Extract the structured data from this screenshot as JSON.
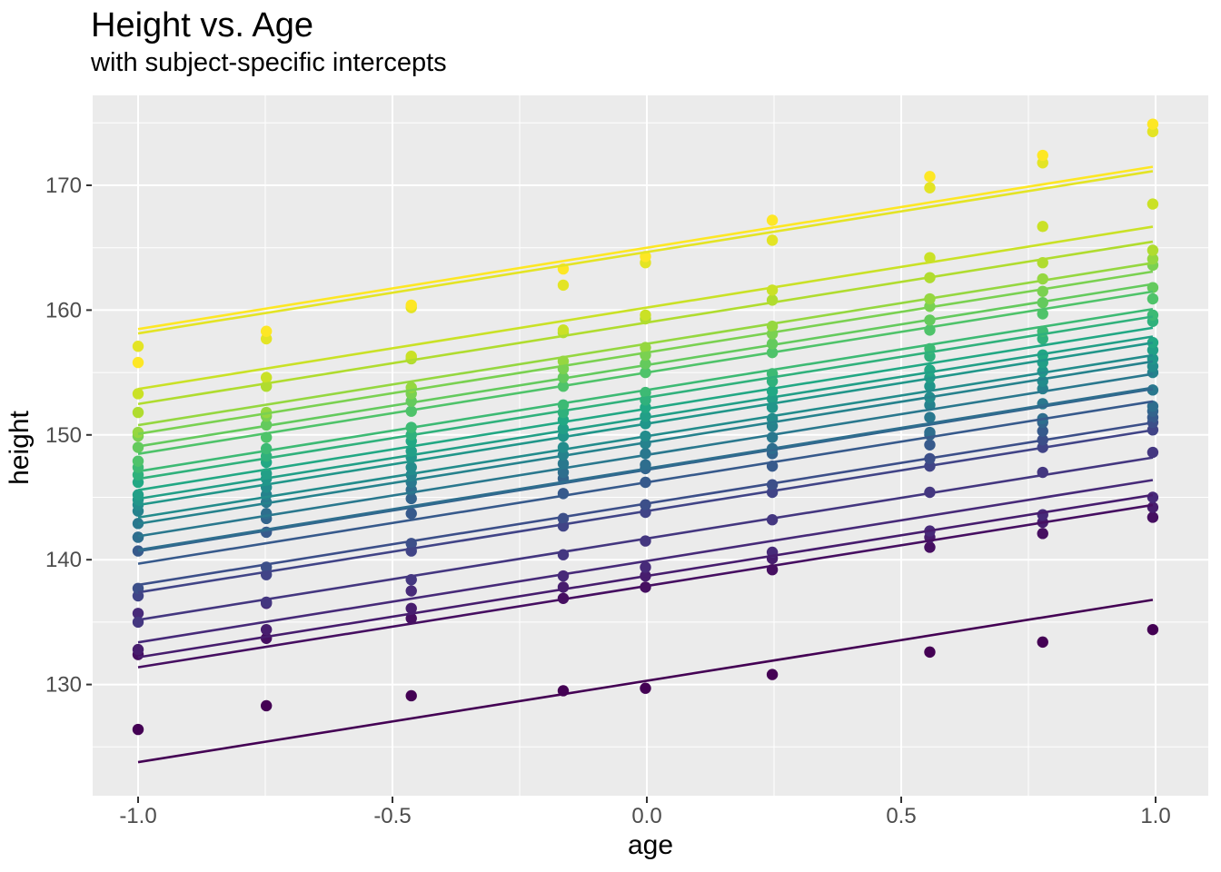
{
  "chart": {
    "title": "Height vs. Age",
    "subtitle": "with subject-specific intercepts",
    "xlabel": "age",
    "ylabel": "height"
  },
  "chart_data": {
    "type": "scatter",
    "title": "Height vs. Age",
    "subtitle": "with subject-specific intercepts",
    "xlabel": "age",
    "ylabel": "height",
    "legend_position": "none",
    "grid": true,
    "panel_bg": "#EBEBEB",
    "grid_color": "#FFFFFF",
    "axis_text_color": "#4D4D4D",
    "tick_mark_color": "#333333",
    "title_color": "#000000",
    "xlim": [
      -1.089,
      1.104
    ],
    "ylim": [
      121.1,
      177.2
    ],
    "x_ticks": [
      -1.0,
      -0.5,
      0.0,
      0.5,
      1.0
    ],
    "x_tick_labels": [
      "-1.0",
      "-0.5",
      "0.0",
      "0.5",
      "1.0"
    ],
    "x_minor_ticks": [
      -0.75,
      -0.25,
      0.25,
      0.75
    ],
    "y_ticks": [
      130,
      140,
      150,
      160,
      170
    ],
    "y_tick_labels": [
      "130",
      "140",
      "150",
      "160",
      "170"
    ],
    "y_minor_ticks": [
      125,
      135,
      145,
      155,
      165,
      175
    ],
    "ages": [
      -1.0,
      -0.7479,
      -0.463,
      -0.1643,
      -0.0027,
      0.2466,
      0.5562,
      0.7781,
      0.9945
    ],
    "common_slope": 6.52,
    "line_x_range": [
      -1.0,
      0.9945
    ],
    "subjects": [
      {
        "id": "1",
        "color": "#440154",
        "intercept": 130.3,
        "heights": [
          126.4,
          128.3,
          129.1,
          129.5,
          129.7,
          130.8,
          132.6,
          133.4,
          134.4
        ]
      },
      {
        "id": "2",
        "color": "#460F61",
        "intercept": 137.9,
        "heights": [
          132.4,
          133.7,
          135.3,
          136.9,
          137.8,
          139.2,
          141.0,
          142.1,
          143.4
        ]
      },
      {
        "id": "3",
        "color": "#471D6E",
        "intercept": 138.7,
        "heights": [
          132.8,
          134.4,
          136.1,
          137.8,
          138.7,
          140.1,
          141.8,
          143.0,
          144.2
        ]
      },
      {
        "id": "4",
        "color": "#472A79",
        "intercept": 139.9,
        "heights": [
          135.7,
          136.5,
          137.5,
          138.7,
          139.4,
          140.6,
          142.3,
          143.6,
          145.0
        ]
      },
      {
        "id": "5",
        "color": "#443780",
        "intercept": 141.7,
        "heights": [
          135.0,
          136.6,
          138.4,
          140.4,
          141.5,
          143.2,
          145.4,
          147.0,
          148.6
        ]
      },
      {
        "id": "6",
        "color": "#414487",
        "intercept": 143.9,
        "heights": [
          137.1,
          138.8,
          140.7,
          142.7,
          143.8,
          145.4,
          147.5,
          149.0,
          150.4
        ]
      },
      {
        "id": "7",
        "color": "#3C4F89",
        "intercept": 144.5,
        "heights": [
          137.7,
          139.4,
          141.3,
          143.3,
          144.4,
          146.0,
          148.1,
          149.6,
          151.0
        ]
      },
      {
        "id": "8",
        "color": "#375A8C",
        "intercept": 146.2,
        "heights": [
          140.7,
          142.2,
          143.7,
          145.3,
          146.2,
          147.5,
          149.2,
          150.3,
          151.4
        ]
      },
      {
        "id": "9",
        "color": "#33648D",
        "intercept": 147.2,
        "heights": [
          141.8,
          143.3,
          144.9,
          146.5,
          147.3,
          148.5,
          150.0,
          151.0,
          151.9
        ]
      },
      {
        "id": "10",
        "color": "#2E6E8E",
        "intercept": 147.3,
        "heights": [
          141.8,
          143.7,
          145.6,
          147.0,
          147.6,
          148.9,
          150.2,
          151.3,
          152.3
        ]
      },
      {
        "id": "11",
        "color": "#2A788E",
        "intercept": 148.4,
        "heights": [
          142.9,
          144.6,
          146.2,
          147.7,
          148.5,
          149.8,
          151.4,
          152.5,
          153.6
        ]
      },
      {
        "id": "12",
        "color": "#26828D",
        "intercept": 149.4,
        "heights": [
          143.9,
          145.2,
          146.8,
          148.4,
          149.3,
          150.7,
          152.4,
          153.7,
          155.0
        ]
      },
      {
        "id": "13",
        "color": "#238C8C",
        "intercept": 149.9,
        "heights": [
          144.4,
          145.8,
          147.4,
          149.0,
          149.9,
          151.3,
          153.0,
          154.3,
          155.5
        ]
      },
      {
        "id": "14",
        "color": "#21968A",
        "intercept": 150.9,
        "heights": [
          144.8,
          146.5,
          148.2,
          149.9,
          150.9,
          152.2,
          153.9,
          155.1,
          156.1
        ]
      },
      {
        "id": "15",
        "color": "#229F87",
        "intercept": 151.4,
        "heights": [
          145.2,
          146.9,
          148.7,
          150.5,
          151.5,
          152.9,
          154.6,
          155.8,
          156.8
        ]
      },
      {
        "id": "16",
        "color": "#22A884",
        "intercept": 152.1,
        "heights": [
          146.2,
          147.8,
          149.5,
          151.2,
          152.2,
          153.5,
          155.2,
          156.4,
          157.4
        ]
      },
      {
        "id": "17",
        "color": "#30B17C",
        "intercept": 153.0,
        "heights": [
          146.8,
          148.3,
          150.0,
          151.8,
          152.8,
          154.3,
          156.3,
          157.7,
          159.1
        ]
      },
      {
        "id": "18",
        "color": "#3DBA74",
        "intercept": 153.6,
        "heights": [
          147.4,
          148.9,
          150.6,
          152.4,
          153.4,
          154.9,
          156.9,
          158.3,
          159.6
        ]
      },
      {
        "id": "19",
        "color": "#4FC36A",
        "intercept": 155.0,
        "heights": [
          147.9,
          149.8,
          151.9,
          153.9,
          155.0,
          156.6,
          158.4,
          159.7,
          160.9
        ]
      },
      {
        "id": "20",
        "color": "#64CA5D",
        "intercept": 155.6,
        "heights": [
          149.0,
          150.8,
          152.7,
          154.6,
          155.7,
          157.3,
          159.2,
          160.6,
          161.8
        ]
      },
      {
        "id": "21",
        "color": "#7AD151",
        "intercept": 156.6,
        "heights": [
          149.9,
          151.5,
          153.3,
          155.3,
          156.4,
          158.1,
          160.3,
          161.5,
          163.6
        ]
      },
      {
        "id": "22",
        "color": "#95D740",
        "intercept": 157.3,
        "heights": [
          150.2,
          151.8,
          153.8,
          155.9,
          157.0,
          158.7,
          160.9,
          162.5,
          164.1
        ]
      },
      {
        "id": "23",
        "color": "#B0DC2F",
        "intercept": 159.0,
        "heights": [
          151.8,
          153.9,
          156.1,
          158.2,
          159.3,
          160.8,
          162.6,
          163.8,
          164.8
        ]
      },
      {
        "id": "24",
        "color": "#CAE126",
        "intercept": 160.2,
        "heights": [
          153.3,
          154.6,
          156.3,
          158.4,
          159.6,
          161.6,
          164.2,
          166.7,
          168.5
        ]
      },
      {
        "id": "25",
        "color": "#E3E425",
        "intercept": 164.65,
        "heights": [
          157.1,
          157.7,
          160.2,
          162.0,
          163.8,
          165.6,
          169.8,
          171.8,
          174.3
        ]
      },
      {
        "id": "26",
        "color": "#FDE725",
        "intercept": 165.0,
        "heights": [
          155.8,
          158.3,
          160.4,
          163.3,
          164.3,
          167.2,
          170.7,
          172.4,
          174.9
        ]
      }
    ]
  }
}
